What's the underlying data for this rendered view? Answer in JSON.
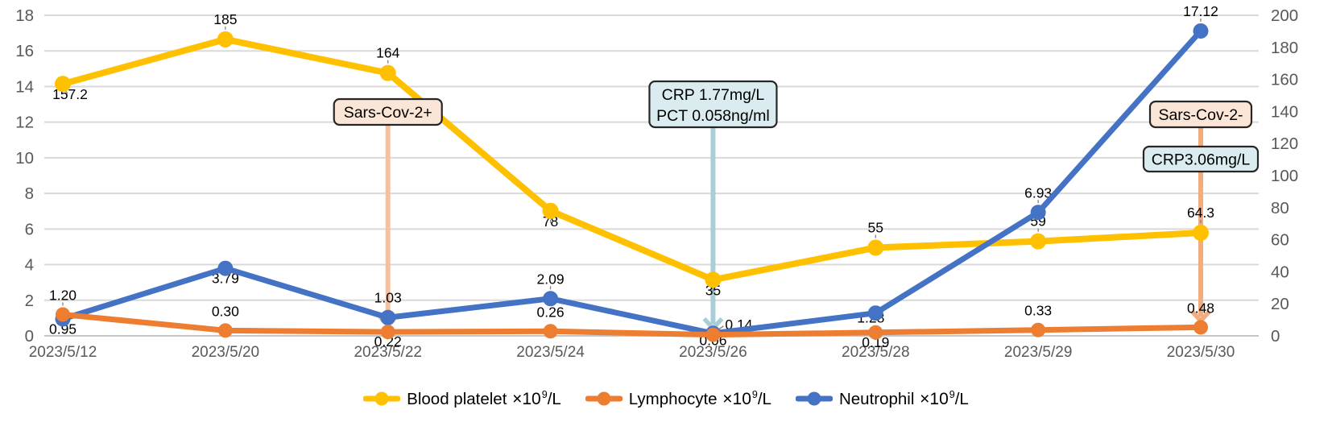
{
  "chart_data": {
    "type": "line",
    "title": "",
    "categories": [
      "2023/5/12",
      "2023/5/20",
      "2023/5/22",
      "2023/5/24",
      "2023/5/26",
      "2023/5/28",
      "2023/5/29",
      "2023/5/30"
    ],
    "series": [
      {
        "name": "Blood platelet",
        "unit": {
          "prefix": "×10",
          "sup": "9",
          "suffix": "/L"
        },
        "axis": "right",
        "color": "#FFC000",
        "values": [
          157.2,
          185,
          164,
          78,
          35,
          55,
          59,
          64.3
        ],
        "point_labels": [
          "157.2",
          "185",
          "164",
          "78",
          "35",
          "55",
          "59",
          "64.3"
        ],
        "label_placements": [
          "below-right",
          "above",
          "above",
          "below",
          "below",
          "above",
          "above",
          "above"
        ],
        "label_leaders": [
          true,
          true,
          true,
          true,
          true,
          true,
          true,
          true
        ]
      },
      {
        "name": "Lymphocyte",
        "unit": {
          "prefix": "×10",
          "sup": "9",
          "suffix": "/L"
        },
        "axis": "left",
        "color": "#ED7D31",
        "values": [
          1.2,
          0.3,
          0.22,
          0.26,
          0.06,
          0.19,
          0.33,
          0.48
        ],
        "point_labels": [
          "1.20",
          "0.30",
          "0.22",
          "0.26",
          "0.06",
          "0.19",
          "0.33",
          "0.48"
        ],
        "label_placements": [
          "above",
          "above",
          "below",
          "above",
          "below-tight",
          "below",
          "above",
          "above"
        ],
        "label_leaders": [
          true,
          false,
          false,
          false,
          false,
          false,
          false,
          false
        ]
      },
      {
        "name": "Neutrophil",
        "unit": {
          "prefix": "×10",
          "sup": "9",
          "suffix": "/L"
        },
        "axis": "left",
        "color": "#4472C4",
        "values": [
          0.95,
          3.79,
          1.03,
          2.09,
          0.14,
          1.28,
          6.93,
          17.12
        ],
        "point_labels": [
          "0.95",
          "3.79",
          "1.03",
          "2.09",
          "0.14",
          "1.28",
          "6.93",
          "17.12"
        ],
        "label_placements": [
          "below",
          "below",
          "above",
          "above",
          "right",
          "left-up",
          "above",
          "above"
        ],
        "label_leaders": [
          false,
          false,
          false,
          true,
          true,
          false,
          true,
          true
        ]
      }
    ],
    "left_axis": {
      "min": 0,
      "max": 18,
      "step": 2,
      "ticks": [
        "0",
        "2",
        "4",
        "6",
        "8",
        "10",
        "12",
        "14",
        "16",
        "18"
      ]
    },
    "right_axis": {
      "min": 0,
      "max": 200,
      "step": 20,
      "ticks": [
        "0",
        "20",
        "40",
        "60",
        "80",
        "100",
        "120",
        "140",
        "160",
        "180",
        "200"
      ]
    },
    "grid": true,
    "legend_position": "bottom",
    "annotations": [
      {
        "id": "sars-cov-2-plus",
        "text_lines": [
          "Sars-Cov-2+"
        ],
        "category_index": 2,
        "fill": "#FBE5D6",
        "arrow_color": "#F6BF9E",
        "arrow_target_series": 1
      },
      {
        "id": "crp-pct",
        "text_lines": [
          "CRP 1.77mg/L",
          "PCT 0.058ng/ml"
        ],
        "category_index": 4,
        "fill": "#DAECEF",
        "arrow_color": "#A9CED6",
        "arrow_target_series": 1
      },
      {
        "id": "sars-cov-2-minus",
        "text_lines": [
          "Sars-Cov-2-"
        ],
        "category_index": 7,
        "fill": "#FBE5D6",
        "arrow_color": "#F3AC7D",
        "arrow_target_series": 1
      },
      {
        "id": "crp-3-06",
        "text_lines": [
          "CRP3.06mg/L"
        ],
        "category_index": 7,
        "fill": "#DAECEF",
        "arrow_color": null,
        "arrow_target_series": null
      }
    ],
    "colors": {
      "grid": "#D9D9D9",
      "zero_line": "#C6C6C6",
      "axis_text": "#595959",
      "data_label": "#000000",
      "box_border": "#262626",
      "leader": "#808080",
      "background": "#FFFFFF"
    }
  }
}
